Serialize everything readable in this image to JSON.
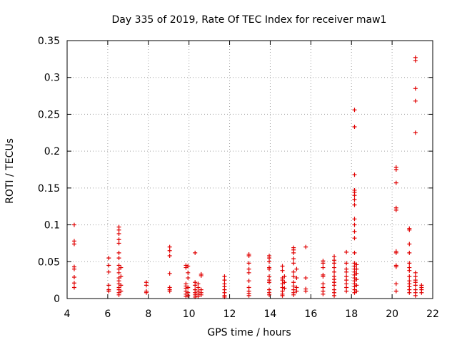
{
  "chart_data": {
    "type": "scatter",
    "title": "Day 335 of 2019, Rate Of TEC Index for receiver maw1",
    "xlabel": "GPS time / hours",
    "ylabel": "ROTI / TECUs",
    "xlim": [
      4,
      22
    ],
    "ylim": [
      0,
      0.35
    ],
    "grid": true,
    "marker": "+",
    "color": "#e00000",
    "x_tick_labels": [
      "4",
      "6",
      "8",
      "10",
      "12",
      "14",
      "16",
      "18",
      "20",
      "22"
    ],
    "y_tick_labels": [
      "0",
      "0.05",
      "0.1",
      "0.15",
      "0.2",
      "0.25",
      "0.3",
      "0.35"
    ],
    "series": [
      {
        "name": "ROTI",
        "points": [
          [
            4.35,
            0.1
          ],
          [
            4.35,
            0.078
          ],
          [
            4.35,
            0.074
          ],
          [
            4.35,
            0.043
          ],
          [
            4.35,
            0.04
          ],
          [
            4.35,
            0.029
          ],
          [
            4.35,
            0.021
          ],
          [
            4.35,
            0.015
          ],
          [
            6.05,
            0.055
          ],
          [
            6.05,
            0.045
          ],
          [
            6.05,
            0.036
          ],
          [
            6.05,
            0.018
          ],
          [
            6.05,
            0.012
          ],
          [
            6.05,
            0.01
          ],
          [
            6.55,
            0.097
          ],
          [
            6.55,
            0.093
          ],
          [
            6.55,
            0.088
          ],
          [
            6.55,
            0.08
          ],
          [
            6.55,
            0.075
          ],
          [
            6.55,
            0.062
          ],
          [
            6.55,
            0.055
          ],
          [
            6.55,
            0.045
          ],
          [
            6.55,
            0.04
          ],
          [
            6.55,
            0.035
          ],
          [
            6.55,
            0.028
          ],
          [
            6.55,
            0.024
          ],
          [
            6.55,
            0.02
          ],
          [
            6.55,
            0.015
          ],
          [
            6.55,
            0.012
          ],
          [
            6.55,
            0.008
          ],
          [
            6.55,
            0.005
          ],
          [
            6.65,
            0.042
          ],
          [
            6.65,
            0.03
          ],
          [
            6.65,
            0.018
          ],
          [
            6.65,
            0.01
          ],
          [
            7.9,
            0.022
          ],
          [
            7.9,
            0.018
          ],
          [
            7.9,
            0.01
          ],
          [
            7.9,
            0.008
          ],
          [
            9.05,
            0.07
          ],
          [
            9.05,
            0.065
          ],
          [
            9.05,
            0.058
          ],
          [
            9.05,
            0.034
          ],
          [
            9.05,
            0.015
          ],
          [
            9.05,
            0.012
          ],
          [
            9.05,
            0.01
          ],
          [
            9.85,
            0.045
          ],
          [
            9.85,
            0.042
          ],
          [
            9.85,
            0.02
          ],
          [
            9.85,
            0.017
          ],
          [
            9.85,
            0.014
          ],
          [
            9.85,
            0.01
          ],
          [
            9.85,
            0.006
          ],
          [
            9.85,
            0.003
          ],
          [
            9.95,
            0.044
          ],
          [
            9.95,
            0.035
          ],
          [
            9.95,
            0.028
          ],
          [
            9.95,
            0.015
          ],
          [
            9.95,
            0.008
          ],
          [
            9.95,
            0.004
          ],
          [
            10.3,
            0.062
          ],
          [
            10.3,
            0.022
          ],
          [
            10.3,
            0.018
          ],
          [
            10.3,
            0.012
          ],
          [
            10.3,
            0.008
          ],
          [
            10.3,
            0.005
          ],
          [
            10.3,
            0.002
          ],
          [
            10.45,
            0.02
          ],
          [
            10.45,
            0.015
          ],
          [
            10.45,
            0.01
          ],
          [
            10.45,
            0.006
          ],
          [
            10.45,
            0.003
          ],
          [
            10.6,
            0.033
          ],
          [
            10.6,
            0.031
          ],
          [
            10.6,
            0.012
          ],
          [
            10.6,
            0.008
          ],
          [
            10.6,
            0.005
          ],
          [
            11.75,
            0.03
          ],
          [
            11.75,
            0.025
          ],
          [
            11.75,
            0.02
          ],
          [
            11.75,
            0.016
          ],
          [
            11.75,
            0.012
          ],
          [
            11.75,
            0.008
          ],
          [
            11.75,
            0.004
          ],
          [
            11.75,
            0.002
          ],
          [
            12.95,
            0.06
          ],
          [
            12.95,
            0.058
          ],
          [
            12.95,
            0.048
          ],
          [
            12.95,
            0.04
          ],
          [
            12.95,
            0.035
          ],
          [
            12.95,
            0.024
          ],
          [
            12.95,
            0.015
          ],
          [
            12.95,
            0.01
          ],
          [
            12.95,
            0.007
          ],
          [
            12.95,
            0.004
          ],
          [
            13.95,
            0.058
          ],
          [
            13.95,
            0.055
          ],
          [
            13.95,
            0.05
          ],
          [
            13.95,
            0.042
          ],
          [
            13.95,
            0.04
          ],
          [
            13.95,
            0.03
          ],
          [
            13.95,
            0.025
          ],
          [
            13.95,
            0.022
          ],
          [
            13.95,
            0.012
          ],
          [
            13.95,
            0.008
          ],
          [
            13.95,
            0.005
          ],
          [
            14.6,
            0.044
          ],
          [
            14.6,
            0.038
          ],
          [
            14.6,
            0.028
          ],
          [
            14.6,
            0.025
          ],
          [
            14.6,
            0.02
          ],
          [
            14.6,
            0.015
          ],
          [
            14.6,
            0.01
          ],
          [
            14.6,
            0.006
          ],
          [
            14.6,
            0.004
          ],
          [
            14.7,
            0.03
          ],
          [
            14.7,
            0.022
          ],
          [
            14.7,
            0.014
          ],
          [
            15.15,
            0.069
          ],
          [
            15.15,
            0.066
          ],
          [
            15.15,
            0.062
          ],
          [
            15.15,
            0.054
          ],
          [
            15.15,
            0.048
          ],
          [
            15.15,
            0.036
          ],
          [
            15.15,
            0.03
          ],
          [
            15.15,
            0.022
          ],
          [
            15.15,
            0.017
          ],
          [
            15.15,
            0.012
          ],
          [
            15.15,
            0.008
          ],
          [
            15.15,
            0.005
          ],
          [
            15.3,
            0.04
          ],
          [
            15.3,
            0.028
          ],
          [
            15.3,
            0.015
          ],
          [
            15.3,
            0.01
          ],
          [
            15.75,
            0.07
          ],
          [
            15.75,
            0.028
          ],
          [
            15.75,
            0.013
          ],
          [
            15.75,
            0.01
          ],
          [
            16.6,
            0.051
          ],
          [
            16.6,
            0.048
          ],
          [
            16.6,
            0.042
          ],
          [
            16.6,
            0.032
          ],
          [
            16.6,
            0.03
          ],
          [
            16.6,
            0.02
          ],
          [
            16.6,
            0.015
          ],
          [
            16.6,
            0.01
          ],
          [
            16.6,
            0.006
          ],
          [
            17.15,
            0.057
          ],
          [
            17.15,
            0.052
          ],
          [
            17.15,
            0.048
          ],
          [
            17.15,
            0.042
          ],
          [
            17.15,
            0.036
          ],
          [
            17.15,
            0.03
          ],
          [
            17.15,
            0.026
          ],
          [
            17.15,
            0.022
          ],
          [
            17.15,
            0.018
          ],
          [
            17.15,
            0.012
          ],
          [
            17.15,
            0.008
          ],
          [
            17.15,
            0.004
          ],
          [
            17.75,
            0.063
          ],
          [
            17.75,
            0.048
          ],
          [
            17.75,
            0.04
          ],
          [
            17.75,
            0.036
          ],
          [
            17.75,
            0.03
          ],
          [
            17.75,
            0.025
          ],
          [
            17.75,
            0.02
          ],
          [
            17.75,
            0.015
          ],
          [
            17.75,
            0.01
          ],
          [
            18.15,
            0.256
          ],
          [
            18.15,
            0.233
          ],
          [
            18.15,
            0.168
          ],
          [
            18.15,
            0.147
          ],
          [
            18.15,
            0.144
          ],
          [
            18.15,
            0.14
          ],
          [
            18.15,
            0.134
          ],
          [
            18.15,
            0.127
          ],
          [
            18.15,
            0.108
          ],
          [
            18.15,
            0.1
          ],
          [
            18.15,
            0.091
          ],
          [
            18.15,
            0.082
          ],
          [
            18.15,
            0.062
          ],
          [
            18.15,
            0.048
          ],
          [
            18.15,
            0.044
          ],
          [
            18.15,
            0.04
          ],
          [
            18.15,
            0.036
          ],
          [
            18.15,
            0.032
          ],
          [
            18.15,
            0.028
          ],
          [
            18.15,
            0.024
          ],
          [
            18.15,
            0.02
          ],
          [
            18.15,
            0.016
          ],
          [
            18.15,
            0.012
          ],
          [
            18.15,
            0.008
          ],
          [
            18.25,
            0.046
          ],
          [
            18.25,
            0.04
          ],
          [
            18.25,
            0.034
          ],
          [
            18.25,
            0.026
          ],
          [
            18.25,
            0.018
          ],
          [
            18.25,
            0.01
          ],
          [
            20.2,
            0.178
          ],
          [
            20.2,
            0.175
          ],
          [
            20.2,
            0.157
          ],
          [
            20.2,
            0.123
          ],
          [
            20.2,
            0.12
          ],
          [
            20.2,
            0.064
          ],
          [
            20.2,
            0.062
          ],
          [
            20.2,
            0.045
          ],
          [
            20.2,
            0.043
          ],
          [
            20.2,
            0.02
          ],
          [
            20.2,
            0.01
          ],
          [
            20.85,
            0.095
          ],
          [
            20.85,
            0.093
          ],
          [
            20.85,
            0.074
          ],
          [
            20.85,
            0.062
          ],
          [
            20.85,
            0.048
          ],
          [
            20.85,
            0.042
          ],
          [
            20.85,
            0.038
          ],
          [
            20.85,
            0.03
          ],
          [
            20.85,
            0.024
          ],
          [
            20.85,
            0.02
          ],
          [
            20.85,
            0.016
          ],
          [
            20.85,
            0.012
          ],
          [
            20.85,
            0.008
          ],
          [
            21.15,
            0.327
          ],
          [
            21.15,
            0.323
          ],
          [
            21.15,
            0.285
          ],
          [
            21.15,
            0.268
          ],
          [
            21.15,
            0.225
          ],
          [
            21.15,
            0.035
          ],
          [
            21.15,
            0.03
          ],
          [
            21.15,
            0.025
          ],
          [
            21.15,
            0.022
          ],
          [
            21.15,
            0.018
          ],
          [
            21.15,
            0.012
          ],
          [
            21.15,
            0.008
          ],
          [
            21.15,
            0.004
          ],
          [
            21.45,
            0.018
          ],
          [
            21.45,
            0.015
          ],
          [
            21.45,
            0.012
          ],
          [
            21.45,
            0.008
          ]
        ]
      }
    ]
  }
}
